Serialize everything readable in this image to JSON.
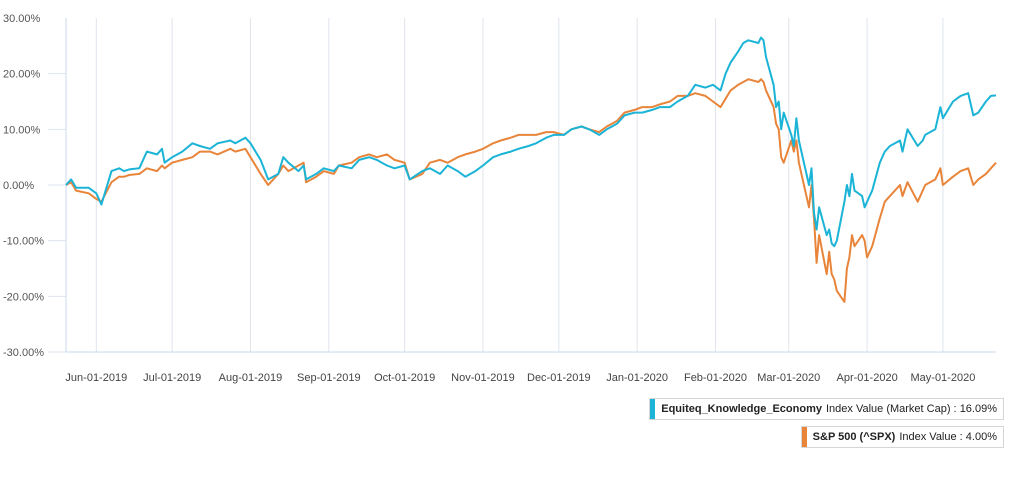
{
  "chart_data": {
    "type": "line",
    "title": "",
    "xlabel": "",
    "ylabel": "",
    "x_range": [
      "2019-05-20",
      "2020-05-22"
    ],
    "ylim": [
      -30,
      30
    ],
    "y_ticks": [
      30,
      20,
      10,
      0,
      -10,
      -20,
      -30
    ],
    "y_tick_labels": [
      "30.00%",
      "20.00%",
      "10.00%",
      "0.00%",
      "-10.00%",
      "-20.00%",
      "-30.00%"
    ],
    "x_ticks": [
      "2019-06-01",
      "2019-07-01",
      "2019-08-01",
      "2019-09-01",
      "2019-10-01",
      "2019-11-01",
      "2019-12-01",
      "2020-01-01",
      "2020-02-01",
      "2020-03-01",
      "2020-04-01",
      "2020-05-01"
    ],
    "x_tick_labels": [
      "Jun-01-2019",
      "Jul-01-2019",
      "Aug-01-2019",
      "Sep-01-2019",
      "Oct-01-2019",
      "Nov-01-2019",
      "Dec-01-2019",
      "Jan-01-2020",
      "Feb-01-2020",
      "Mar-01-2020",
      "Apr-01-2020",
      "May-01-2020"
    ],
    "grid": "vertical",
    "legend_position": "bottom-right",
    "series": [
      {
        "name": "Equiteq_Knowledge_Economy",
        "label_suffix": "Index Value (Market Cap) :",
        "final_value": "16.09%",
        "color": "#1bb4d6",
        "points": [
          [
            "2019-05-20",
            0
          ],
          [
            "2019-05-22",
            1
          ],
          [
            "2019-05-24",
            -0.5
          ],
          [
            "2019-05-29",
            -0.5
          ],
          [
            "2019-06-01",
            -1.5
          ],
          [
            "2019-06-03",
            -3.5
          ],
          [
            "2019-06-07",
            2.5
          ],
          [
            "2019-06-10",
            3
          ],
          [
            "2019-06-12",
            2.5
          ],
          [
            "2019-06-14",
            2.8
          ],
          [
            "2019-06-18",
            3
          ],
          [
            "2019-06-21",
            6
          ],
          [
            "2019-06-25",
            5.5
          ],
          [
            "2019-06-27",
            6.5
          ],
          [
            "2019-06-28",
            4
          ],
          [
            "2019-07-01",
            5
          ],
          [
            "2019-07-05",
            6
          ],
          [
            "2019-07-09",
            7.5
          ],
          [
            "2019-07-12",
            7
          ],
          [
            "2019-07-16",
            6.5
          ],
          [
            "2019-07-19",
            7.5
          ],
          [
            "2019-07-24",
            8
          ],
          [
            "2019-07-26",
            7.5
          ],
          [
            "2019-07-30",
            8.5
          ],
          [
            "2019-08-01",
            7.5
          ],
          [
            "2019-08-05",
            4.5
          ],
          [
            "2019-08-08",
            1
          ],
          [
            "2019-08-12",
            2
          ],
          [
            "2019-08-14",
            5
          ],
          [
            "2019-08-16",
            4
          ],
          [
            "2019-08-20",
            2.5
          ],
          [
            "2019-08-22",
            3.5
          ],
          [
            "2019-08-23",
            1
          ],
          [
            "2019-08-27",
            2
          ],
          [
            "2019-08-30",
            3
          ],
          [
            "2019-09-03",
            2.5
          ],
          [
            "2019-09-05",
            3.5
          ],
          [
            "2019-09-10",
            3
          ],
          [
            "2019-09-13",
            4.5
          ],
          [
            "2019-09-17",
            5
          ],
          [
            "2019-09-20",
            4.5
          ],
          [
            "2019-09-24",
            3.5
          ],
          [
            "2019-09-27",
            3
          ],
          [
            "2019-10-01",
            3.5
          ],
          [
            "2019-10-03",
            1
          ],
          [
            "2019-10-08",
            2.5
          ],
          [
            "2019-10-11",
            3
          ],
          [
            "2019-10-15",
            2
          ],
          [
            "2019-10-18",
            3.5
          ],
          [
            "2019-10-22",
            2.5
          ],
          [
            "2019-10-25",
            1.5
          ],
          [
            "2019-10-29",
            2.5
          ],
          [
            "2019-11-01",
            3.5
          ],
          [
            "2019-11-05",
            5
          ],
          [
            "2019-11-08",
            5.5
          ],
          [
            "2019-11-12",
            6
          ],
          [
            "2019-11-15",
            6.5
          ],
          [
            "2019-11-19",
            7
          ],
          [
            "2019-11-22",
            7.5
          ],
          [
            "2019-11-26",
            8.5
          ],
          [
            "2019-11-29",
            9
          ],
          [
            "2019-12-03",
            9
          ],
          [
            "2019-12-06",
            10
          ],
          [
            "2019-12-10",
            10.5
          ],
          [
            "2019-12-13",
            10
          ],
          [
            "2019-12-17",
            9
          ],
          [
            "2019-12-20",
            10
          ],
          [
            "2019-12-24",
            11
          ],
          [
            "2019-12-27",
            12.5
          ],
          [
            "2019-12-31",
            13
          ],
          [
            "2020-01-03",
            13
          ],
          [
            "2020-01-07",
            13.5
          ],
          [
            "2020-01-10",
            14
          ],
          [
            "2020-01-14",
            14
          ],
          [
            "2020-01-17",
            15
          ],
          [
            "2020-01-21",
            16
          ],
          [
            "2020-01-24",
            18
          ],
          [
            "2020-01-28",
            17.5
          ],
          [
            "2020-01-31",
            18
          ],
          [
            "2020-02-03",
            17
          ],
          [
            "2020-02-05",
            20
          ],
          [
            "2020-02-07",
            22
          ],
          [
            "2020-02-10",
            24
          ],
          [
            "2020-02-12",
            25.5
          ],
          [
            "2020-02-14",
            26
          ],
          [
            "2020-02-18",
            25.5
          ],
          [
            "2020-02-19",
            26.5
          ],
          [
            "2020-02-20",
            26
          ],
          [
            "2020-02-21",
            23
          ],
          [
            "2020-02-24",
            18
          ],
          [
            "2020-02-25",
            14
          ],
          [
            "2020-02-26",
            15
          ],
          [
            "2020-02-27",
            10
          ],
          [
            "2020-02-28",
            13
          ],
          [
            "2020-03-02",
            9
          ],
          [
            "2020-03-03",
            7
          ],
          [
            "2020-03-04",
            12
          ],
          [
            "2020-03-05",
            8
          ],
          [
            "2020-03-06",
            6
          ],
          [
            "2020-03-09",
            0
          ],
          [
            "2020-03-10",
            3
          ],
          [
            "2020-03-11",
            -5
          ],
          [
            "2020-03-12",
            -8
          ],
          [
            "2020-03-13",
            -4
          ],
          [
            "2020-03-16",
            -9
          ],
          [
            "2020-03-17",
            -8
          ],
          [
            "2020-03-18",
            -10.5
          ],
          [
            "2020-03-19",
            -11
          ],
          [
            "2020-03-20",
            -10
          ],
          [
            "2020-03-23",
            -3
          ],
          [
            "2020-03-24",
            0
          ],
          [
            "2020-03-25",
            -2
          ],
          [
            "2020-03-26",
            2
          ],
          [
            "2020-03-27",
            -1
          ],
          [
            "2020-03-30",
            -2
          ],
          [
            "2020-03-31",
            -4
          ],
          [
            "2020-04-01",
            -3
          ],
          [
            "2020-04-03",
            -1
          ],
          [
            "2020-04-06",
            4
          ],
          [
            "2020-04-08",
            6
          ],
          [
            "2020-04-10",
            7
          ],
          [
            "2020-04-14",
            8
          ],
          [
            "2020-04-15",
            6
          ],
          [
            "2020-04-17",
            10
          ],
          [
            "2020-04-21",
            7
          ],
          [
            "2020-04-23",
            8
          ],
          [
            "2020-04-24",
            9
          ],
          [
            "2020-04-28",
            10
          ],
          [
            "2020-04-30",
            14
          ],
          [
            "2020-05-01",
            12
          ],
          [
            "2020-05-05",
            15
          ],
          [
            "2020-05-08",
            16
          ],
          [
            "2020-05-11",
            16.5
          ],
          [
            "2020-05-13",
            12.5
          ],
          [
            "2020-05-15",
            13
          ],
          [
            "2020-05-18",
            15
          ],
          [
            "2020-05-20",
            16
          ],
          [
            "2020-05-22",
            16.09
          ]
        ]
      },
      {
        "name": "S&P 500 (^SPX)",
        "label_suffix": "Index Value :",
        "final_value": "4.00%",
        "color": "#e8853b",
        "points": [
          [
            "2019-05-20",
            0
          ],
          [
            "2019-05-22",
            0.5
          ],
          [
            "2019-05-24",
            -1
          ],
          [
            "2019-05-29",
            -1.5
          ],
          [
            "2019-06-01",
            -2.5
          ],
          [
            "2019-06-03",
            -3
          ],
          [
            "2019-06-07",
            0.5
          ],
          [
            "2019-06-10",
            1.5
          ],
          [
            "2019-06-12",
            1.5
          ],
          [
            "2019-06-14",
            1.8
          ],
          [
            "2019-06-18",
            2
          ],
          [
            "2019-06-21",
            3
          ],
          [
            "2019-06-25",
            2.5
          ],
          [
            "2019-06-27",
            3.5
          ],
          [
            "2019-06-28",
            3
          ],
          [
            "2019-07-01",
            4
          ],
          [
            "2019-07-05",
            4.5
          ],
          [
            "2019-07-09",
            5
          ],
          [
            "2019-07-12",
            6
          ],
          [
            "2019-07-16",
            6
          ],
          [
            "2019-07-19",
            5.5
          ],
          [
            "2019-07-24",
            6.5
          ],
          [
            "2019-07-26",
            6
          ],
          [
            "2019-07-30",
            6.5
          ],
          [
            "2019-08-01",
            5
          ],
          [
            "2019-08-05",
            2
          ],
          [
            "2019-08-08",
            0
          ],
          [
            "2019-08-12",
            2
          ],
          [
            "2019-08-14",
            3.5
          ],
          [
            "2019-08-16",
            2.5
          ],
          [
            "2019-08-20",
            3.5
          ],
          [
            "2019-08-22",
            4
          ],
          [
            "2019-08-23",
            0.5
          ],
          [
            "2019-08-27",
            1.5
          ],
          [
            "2019-08-30",
            2.5
          ],
          [
            "2019-09-03",
            2
          ],
          [
            "2019-09-05",
            3.5
          ],
          [
            "2019-09-10",
            4
          ],
          [
            "2019-09-13",
            5
          ],
          [
            "2019-09-17",
            5.5
          ],
          [
            "2019-09-20",
            5
          ],
          [
            "2019-09-24",
            5.5
          ],
          [
            "2019-09-27",
            4.5
          ],
          [
            "2019-10-01",
            4
          ],
          [
            "2019-10-03",
            1
          ],
          [
            "2019-10-08",
            2
          ],
          [
            "2019-10-11",
            4
          ],
          [
            "2019-10-15",
            4.5
          ],
          [
            "2019-10-18",
            4
          ],
          [
            "2019-10-22",
            5
          ],
          [
            "2019-10-25",
            5.5
          ],
          [
            "2019-10-29",
            6
          ],
          [
            "2019-11-01",
            6.5
          ],
          [
            "2019-11-05",
            7.5
          ],
          [
            "2019-11-08",
            8
          ],
          [
            "2019-11-12",
            8.5
          ],
          [
            "2019-11-15",
            9
          ],
          [
            "2019-11-19",
            9
          ],
          [
            "2019-11-22",
            9
          ],
          [
            "2019-11-26",
            9.5
          ],
          [
            "2019-11-29",
            9.5
          ],
          [
            "2019-12-03",
            9
          ],
          [
            "2019-12-06",
            10
          ],
          [
            "2019-12-10",
            10.5
          ],
          [
            "2019-12-13",
            10
          ],
          [
            "2019-12-17",
            9.5
          ],
          [
            "2019-12-20",
            10.5
          ],
          [
            "2019-12-24",
            11.5
          ],
          [
            "2019-12-27",
            13
          ],
          [
            "2019-12-31",
            13.5
          ],
          [
            "2020-01-03",
            14
          ],
          [
            "2020-01-07",
            14
          ],
          [
            "2020-01-10",
            14.5
          ],
          [
            "2020-01-14",
            15
          ],
          [
            "2020-01-17",
            16
          ],
          [
            "2020-01-21",
            16
          ],
          [
            "2020-01-24",
            16.5
          ],
          [
            "2020-01-28",
            16
          ],
          [
            "2020-01-31",
            15
          ],
          [
            "2020-02-03",
            14
          ],
          [
            "2020-02-05",
            15.5
          ],
          [
            "2020-02-07",
            17
          ],
          [
            "2020-02-10",
            18
          ],
          [
            "2020-02-12",
            18.5
          ],
          [
            "2020-02-14",
            19
          ],
          [
            "2020-02-18",
            18.5
          ],
          [
            "2020-02-19",
            19
          ],
          [
            "2020-02-20",
            18.5
          ],
          [
            "2020-02-21",
            17
          ],
          [
            "2020-02-24",
            14
          ],
          [
            "2020-02-25",
            11
          ],
          [
            "2020-02-26",
            10
          ],
          [
            "2020-02-27",
            5
          ],
          [
            "2020-02-28",
            4
          ],
          [
            "2020-03-02",
            8
          ],
          [
            "2020-03-03",
            6
          ],
          [
            "2020-03-04",
            8
          ],
          [
            "2020-03-05",
            4
          ],
          [
            "2020-03-06",
            2
          ],
          [
            "2020-03-09",
            -4
          ],
          [
            "2020-03-10",
            0
          ],
          [
            "2020-03-11",
            -6
          ],
          [
            "2020-03-12",
            -14
          ],
          [
            "2020-03-13",
            -9
          ],
          [
            "2020-03-16",
            -16
          ],
          [
            "2020-03-17",
            -12
          ],
          [
            "2020-03-18",
            -16
          ],
          [
            "2020-03-19",
            -17
          ],
          [
            "2020-03-20",
            -19
          ],
          [
            "2020-03-23",
            -21
          ],
          [
            "2020-03-24",
            -15
          ],
          [
            "2020-03-25",
            -13
          ],
          [
            "2020-03-26",
            -9
          ],
          [
            "2020-03-27",
            -11
          ],
          [
            "2020-03-30",
            -9
          ],
          [
            "2020-03-31",
            -10
          ],
          [
            "2020-04-01",
            -13
          ],
          [
            "2020-04-03",
            -11
          ],
          [
            "2020-04-06",
            -6
          ],
          [
            "2020-04-08",
            -3
          ],
          [
            "2020-04-10",
            -2
          ],
          [
            "2020-04-14",
            0
          ],
          [
            "2020-04-15",
            -2
          ],
          [
            "2020-04-17",
            0.5
          ],
          [
            "2020-04-21",
            -3
          ],
          [
            "2020-04-23",
            -1
          ],
          [
            "2020-04-24",
            0
          ],
          [
            "2020-04-28",
            1
          ],
          [
            "2020-04-30",
            3
          ],
          [
            "2020-05-01",
            0
          ],
          [
            "2020-05-05",
            1.5
          ],
          [
            "2020-05-08",
            2.5
          ],
          [
            "2020-05-11",
            3
          ],
          [
            "2020-05-13",
            0
          ],
          [
            "2020-05-15",
            1
          ],
          [
            "2020-05-18",
            2
          ],
          [
            "2020-05-20",
            3
          ],
          [
            "2020-05-22",
            4
          ]
        ]
      }
    ]
  }
}
